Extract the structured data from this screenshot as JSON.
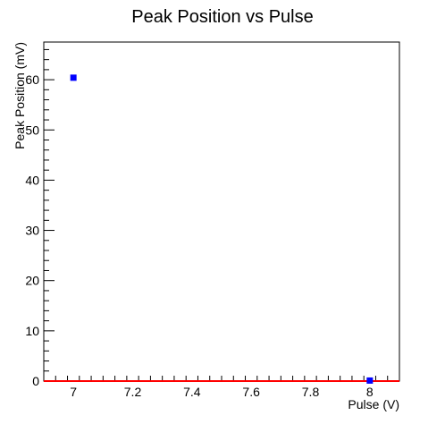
{
  "chart_data": {
    "type": "scatter",
    "title": "Peak Position vs Pulse",
    "xlabel": "Pulse (V)",
    "ylabel": "Peak Position (mV)",
    "xlim": [
      6.9,
      8.1
    ],
    "ylim": [
      0,
      67.5
    ],
    "x_ticks": [
      "7",
      "7.2",
      "7.4",
      "7.6",
      "7.8",
      "8"
    ],
    "y_ticks": [
      "0",
      "10",
      "20",
      "30",
      "40",
      "50",
      "60"
    ],
    "grid": false,
    "legend": "none",
    "series": [
      {
        "x": [
          7,
          8
        ],
        "y": [
          60.4,
          0.1
        ],
        "marker": "square",
        "color": "#0000ff"
      }
    ],
    "fit_line": {
      "x": [
        6.9,
        8.1
      ],
      "y": [
        0,
        0
      ],
      "color": "#ff0000"
    }
  }
}
